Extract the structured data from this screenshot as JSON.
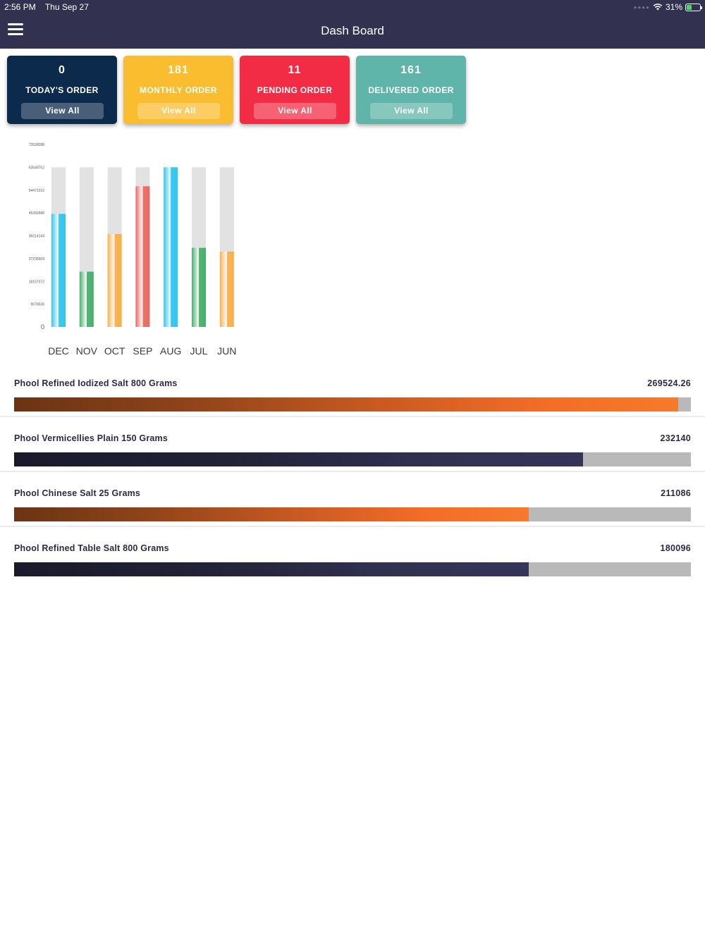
{
  "status_bar": {
    "time": "2:56 PM",
    "date": "Thu Sep 27",
    "battery": "31%"
  },
  "nav": {
    "title": "Dash Board",
    "menu_icon": "hamburger-menu-icon"
  },
  "cards": [
    {
      "value": "0",
      "label": "TODAY'S ORDER",
      "button": "View All",
      "color": "#0c2a4c"
    },
    {
      "value": "181",
      "label": "MONTHLY ORDER",
      "button": "View All",
      "color": "#fbbd30"
    },
    {
      "value": "11",
      "label": "PENDING ORDER",
      "button": "View All",
      "color": "#f32c45"
    },
    {
      "value": "161",
      "label": "DELIVERED ORDER",
      "button": "View All",
      "color": "#5fb5a9"
    }
  ],
  "chart_data": {
    "type": "bar",
    "categories": [
      "DEC",
      "NOV",
      "OCT",
      "SEP",
      "AUG",
      "JUL",
      "JUN"
    ],
    "values": [
      45000000,
      22000000,
      37000000,
      56000000,
      63549752,
      31500000,
      30000000
    ],
    "background_max": 63549752,
    "ytick_labels": [
      "0",
      "9078536",
      "18157072",
      "27235609",
      "36314144",
      "45392680",
      "54471216",
      "63549752",
      "72628288"
    ],
    "ylim": [
      0,
      72628288
    ],
    "bar_colors": [
      "#2ec6f0",
      "#45b06a",
      "#f7b04a",
      "#ea6860",
      "#2ec6f0",
      "#45b06a",
      "#f7b04a"
    ],
    "grid": false,
    "legend": "none"
  },
  "products": [
    {
      "name": "Phool Refined Iodized Salt 800 Grams",
      "value": "269524.26",
      "fraction": 0.981,
      "style": "orange"
    },
    {
      "name": "Phool Vermicellies Plain 150 Grams",
      "value": "232140",
      "fraction": 0.841,
      "style": "navy"
    },
    {
      "name": "Phool Chinese Salt 25 Grams",
      "value": "211086",
      "fraction": 0.76,
      "style": "orange"
    },
    {
      "name": "Phool Refined Table Salt 800 Grams",
      "value": "180096",
      "fraction": 0.76,
      "style": "navy"
    }
  ]
}
